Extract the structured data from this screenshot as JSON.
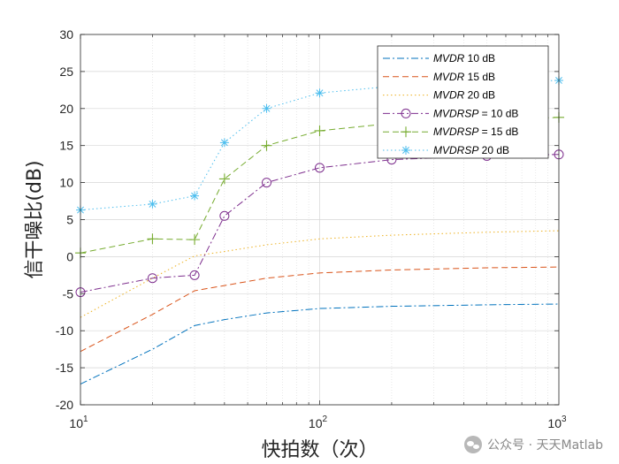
{
  "chart_data": {
    "type": "line",
    "xscale": "log",
    "xlim": [
      10,
      1000
    ],
    "ylim": [
      -20,
      30
    ],
    "xlabel": "快拍数（次）",
    "ylabel": "信干噪比(dB)",
    "yticks": [
      "-20",
      "-15",
      "-10",
      "-5",
      "0",
      "5",
      "10",
      "15",
      "20",
      "25",
      "30"
    ],
    "xticks": [
      {
        "base": "10",
        "exp": "1"
      },
      {
        "base": "10",
        "exp": "2"
      },
      {
        "base": "10",
        "exp": "3"
      }
    ],
    "grid": true,
    "legend_position": "top-right",
    "x": [
      10,
      20,
      30,
      40,
      60,
      100,
      200,
      500,
      1000
    ],
    "series": [
      {
        "name_italic": "MVDR",
        "name_rest": "  10 dB",
        "color": "#0072BD",
        "dash": "8,3,2,3",
        "marker": "none",
        "values": [
          -17.2,
          -12.5,
          -9.3,
          -8.5,
          -7.6,
          -7.0,
          -6.7,
          -6.5,
          -6.4
        ]
      },
      {
        "name_italic": "MVDR",
        "name_rest": "  15 dB",
        "color": "#D95319",
        "dash": "7,4",
        "marker": "none",
        "values": [
          -12.8,
          -7.8,
          -4.6,
          -3.9,
          -2.9,
          -2.2,
          -1.8,
          -1.5,
          -1.4
        ]
      },
      {
        "name_italic": "MVDR",
        "name_rest": "  20 dB",
        "color": "#EDB120",
        "dash": "1.5,3",
        "marker": "none",
        "values": [
          -8.2,
          -2.9,
          0.1,
          0.7,
          1.6,
          2.4,
          2.9,
          3.3,
          3.5
        ]
      },
      {
        "name_italic": "MVDRSP",
        "name_rest": "  = 10 dB",
        "color": "#7E2F8E",
        "dash": "8,3,2,3",
        "marker": "circle",
        "values": [
          -4.8,
          -2.9,
          -2.5,
          5.5,
          10.0,
          12.0,
          13.1,
          13.6,
          13.8
        ]
      },
      {
        "name_italic": "MVDRSP",
        "name_rest": "  = 15 dB",
        "color": "#77AC30",
        "dash": "7,4",
        "marker": "plus",
        "values": [
          0.5,
          2.4,
          2.3,
          10.5,
          15.0,
          17.0,
          18.0,
          18.5,
          18.8
        ]
      },
      {
        "name_italic": "MVDRSP",
        "name_rest": "  20 dB",
        "color": "#4DBEEE",
        "dash": "1.5,3",
        "marker": "asterisk",
        "values": [
          6.3,
          7.1,
          8.2,
          15.4,
          20.0,
          22.1,
          23.0,
          23.5,
          23.8
        ]
      }
    ]
  },
  "watermark": {
    "text": "公众号 · 天天Matlab"
  }
}
